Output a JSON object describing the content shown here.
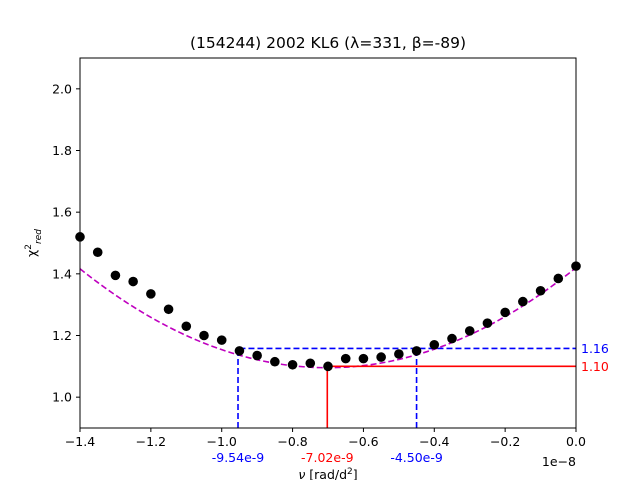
{
  "chart_data": {
    "type": "scatter",
    "title": "(154244) 2002 KL6 (λ=331, β=-89)",
    "xlabel": "ν [rad/d²]",
    "ylabel": "χ²red",
    "x_offset_label": "1e−8",
    "xlim": [
      -1.4,
      0.0
    ],
    "ylim": [
      0.9,
      2.1
    ],
    "x_ticks": [
      -1.4,
      -1.2,
      -1.0,
      -0.8,
      -0.6,
      -0.4,
      -0.2,
      0.0
    ],
    "x_tick_labels": [
      "−1.4",
      "−1.2",
      "−1.0",
      "−0.8",
      "−0.6",
      "−0.4",
      "−0.2",
      "0.0"
    ],
    "y_ticks": [
      1.0,
      1.2,
      1.4,
      1.6,
      1.8,
      2.0
    ],
    "y_tick_labels": [
      "1.0",
      "1.2",
      "1.4",
      "1.6",
      "1.8",
      "2.0"
    ],
    "grid": false,
    "series": [
      {
        "kind": "points",
        "color": "#000000",
        "x": [
          -1.4,
          -1.35,
          -1.3,
          -1.25,
          -1.2,
          -1.15,
          -1.1,
          -1.05,
          -1.0,
          -0.95,
          -0.9,
          -0.85,
          -0.8,
          -0.75,
          -0.7,
          -0.65,
          -0.6,
          -0.55,
          -0.5,
          -0.45,
          -0.4,
          -0.35,
          -0.3,
          -0.25,
          -0.2,
          -0.15,
          -0.1,
          -0.05,
          0.0
        ],
        "y": [
          1.52,
          1.47,
          1.395,
          1.375,
          1.335,
          1.285,
          1.23,
          1.2,
          1.185,
          1.15,
          1.135,
          1.115,
          1.105,
          1.11,
          1.1,
          1.125,
          1.125,
          1.13,
          1.14,
          1.15,
          1.17,
          1.19,
          1.215,
          1.24,
          1.275,
          1.31,
          1.345,
          1.385,
          1.425
        ]
      },
      {
        "kind": "fit",
        "color": "#bf00bf",
        "dashed": true,
        "a": 0.6582,
        "x_min": -0.7019,
        "y_min": 1.0956
      }
    ],
    "annotations": {
      "minimum": {
        "x": -0.702,
        "y": 1.1,
        "x_label": "-7.02e-9",
        "y_label": "1.10",
        "color": "#ff0000"
      },
      "interval": {
        "x_left": -0.954,
        "x_right": -0.45,
        "y": 1.158,
        "x_left_label": "-9.54e-9",
        "x_right_label": "-4.50e-9",
        "y_label": "1.16",
        "color": "#0000ff"
      }
    }
  }
}
